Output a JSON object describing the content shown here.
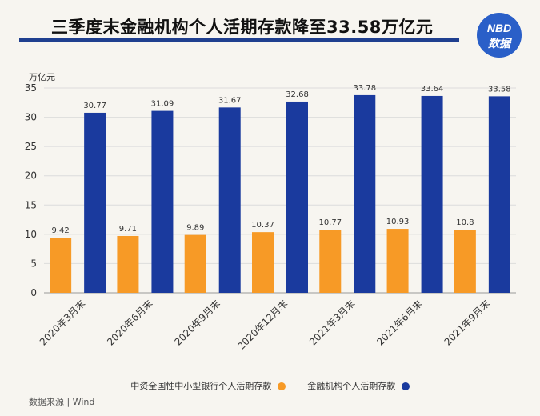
{
  "header": {
    "title": "三季度末金融机构个人活期存款降至33.58万亿元",
    "logo_top": "NBD",
    "logo_bottom": "数据"
  },
  "footer": {
    "source": "数据来源 | Wind"
  },
  "colors": {
    "series_small_banks": "#f79a26",
    "series_all_institutions": "#1a3a9e",
    "accent": "#1f3f8f"
  },
  "chart_data": {
    "type": "bar",
    "title": "三季度末金融机构个人活期存款降至33.58万亿元",
    "ylabel": "万亿元",
    "xlabel": "",
    "ylim": [
      0,
      35
    ],
    "yticks": [
      0,
      5,
      10,
      15,
      20,
      25,
      30,
      35
    ],
    "grid": true,
    "legend_position": "bottom",
    "categories": [
      "2020年3月末",
      "2020年6月末",
      "2020年9月末",
      "2020年12月末",
      "2021年3月末",
      "2021年6月末",
      "2021年9月末"
    ],
    "series": [
      {
        "name": "中资全国性中小型银行个人活期存款",
        "values": [
          9.42,
          9.71,
          9.89,
          10.37,
          10.77,
          10.93,
          10.8
        ],
        "labels": [
          "9.42",
          "9.71",
          "9.89",
          "10.37",
          "10.77",
          "10.93",
          "10.8"
        ]
      },
      {
        "name": "金融机构个人活期存款",
        "values": [
          30.77,
          31.09,
          31.67,
          32.68,
          33.78,
          33.64,
          33.58
        ],
        "labels": [
          "30.77",
          "31.09",
          "31.67",
          "32.68",
          "33.78",
          "33.64",
          "33.58"
        ]
      }
    ]
  }
}
